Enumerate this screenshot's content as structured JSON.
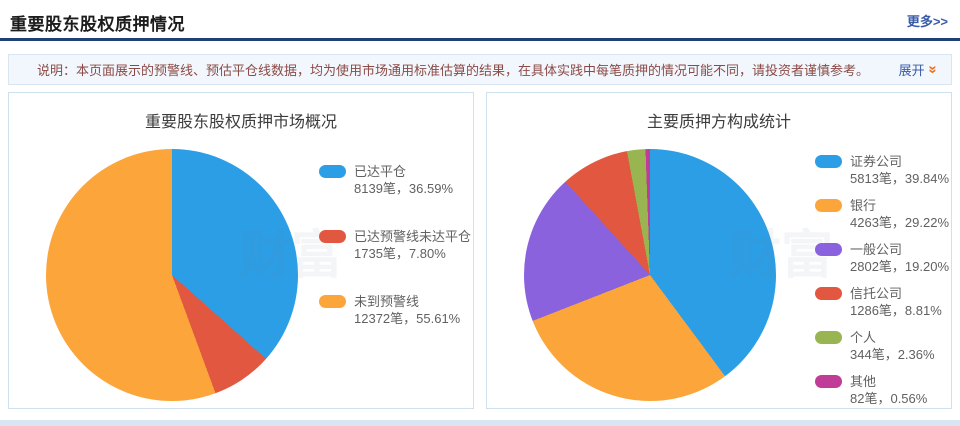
{
  "page": {
    "title": "重要股东股权质押情况",
    "more_label": "更多>>",
    "notice": "说明：本页面展示的预警线、预估平仓线数据，均为使用市场通用标准估算的结果，在具体实践中每笔质押的情况可能不同，请投资者谨慎参考。",
    "expand_label": "展开",
    "expand_icon": "chevrons-down-icon",
    "watermark": "财富"
  },
  "colors": {
    "accent_navy": "#1F4178",
    "link_blue": "#3A5BA9",
    "notice_text": "#8C4A45",
    "notice_bg": "#F1F7FD",
    "chevron_orange": "#EE6F1E",
    "panel_border": "#CFE0EF",
    "bottom_strip": "#D9E5F2"
  },
  "chart_data": [
    {
      "type": "pie",
      "title": "重要股东股权质押市场概况",
      "legend_position": "right",
      "unit": "笔",
      "start_angle_deg": 0,
      "direction": "clockwise",
      "slices": [
        {
          "label": "已达平仓",
          "value": 8139,
          "percent": 36.59,
          "value_label": "8139笔，36.59%",
          "color": "#2B9EE6"
        },
        {
          "label": "已达预警线未达平仓",
          "value": 1735,
          "percent": 7.8,
          "value_label": "1735笔，7.80%",
          "color": "#E2573F"
        },
        {
          "label": "未到预警线",
          "value": 12372,
          "percent": 55.61,
          "value_label": "12372笔，55.61%",
          "color": "#FCA53A"
        }
      ]
    },
    {
      "type": "pie",
      "title": "主要质押方构成统计",
      "legend_position": "right",
      "unit": "笔",
      "start_angle_deg": 0,
      "direction": "clockwise",
      "slices": [
        {
          "label": "证券公司",
          "value": 5813,
          "percent": 39.84,
          "value_label": "5813笔，39.84%",
          "color": "#2B9EE6"
        },
        {
          "label": "银行",
          "value": 4263,
          "percent": 29.22,
          "value_label": "4263笔，29.22%",
          "color": "#FCA53A"
        },
        {
          "label": "一般公司",
          "value": 2802,
          "percent": 19.2,
          "value_label": "2802笔，19.20%",
          "color": "#8A62DE"
        },
        {
          "label": "信托公司",
          "value": 1286,
          "percent": 8.81,
          "value_label": "1286笔，8.81%",
          "color": "#E2573F"
        },
        {
          "label": "个人",
          "value": 344,
          "percent": 2.36,
          "value_label": "344笔，2.36%",
          "color": "#98B551"
        },
        {
          "label": "其他",
          "value": 82,
          "percent": 0.56,
          "value_label": "82笔，0.56%",
          "color": "#C03C96"
        }
      ]
    }
  ]
}
